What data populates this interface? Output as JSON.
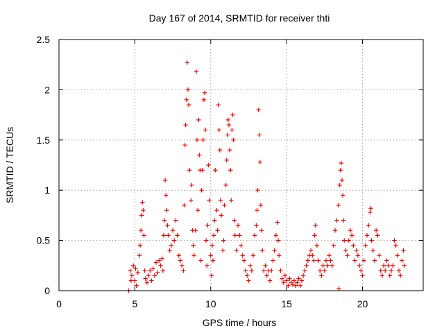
{
  "chart_data": {
    "type": "scatter",
    "title": "Day 167 of 2014, SRMTID for receiver thti",
    "xlabel": "GPS time / hours",
    "ylabel": "SRMTID / TECUs",
    "xlim": [
      0,
      24
    ],
    "ylim": [
      0,
      2.5
    ],
    "xticks": [
      {
        "value": 0,
        "label": "0"
      },
      {
        "value": 5,
        "label": "5"
      },
      {
        "value": 10,
        "label": "10"
      },
      {
        "value": 15,
        "label": "15"
      },
      {
        "value": 20,
        "label": "20"
      }
    ],
    "yticks": [
      {
        "value": 0,
        "label": "0"
      },
      {
        "value": 0.5,
        "label": "0.5"
      },
      {
        "value": 1,
        "label": "1"
      },
      {
        "value": 1.5,
        "label": "1.5"
      },
      {
        "value": 2,
        "label": "2"
      },
      {
        "value": 2.5,
        "label": "2.5"
      }
    ],
    "grid": true,
    "marker": "+",
    "series": [
      {
        "name": "SRMTID",
        "color": "#ff0000",
        "points": [
          [
            4.6,
            0.0
          ],
          [
            4.7,
            0.2
          ],
          [
            4.75,
            0.1
          ],
          [
            4.8,
            0.15
          ],
          [
            4.9,
            0.25
          ],
          [
            5.0,
            0.1
          ],
          [
            5.05,
            0.22
          ],
          [
            5.1,
            0.05
          ],
          [
            5.2,
            0.18
          ],
          [
            5.3,
            0.35
          ],
          [
            5.35,
            0.45
          ],
          [
            5.4,
            0.6
          ],
          [
            5.45,
            0.75
          ],
          [
            5.5,
            0.88
          ],
          [
            5.55,
            0.8
          ],
          [
            5.6,
            0.55
          ],
          [
            5.65,
            0.2
          ],
          [
            5.7,
            0.12
          ],
          [
            5.8,
            0.08
          ],
          [
            5.9,
            0.15
          ],
          [
            6.0,
            0.2
          ],
          [
            6.1,
            0.1
          ],
          [
            6.2,
            0.22
          ],
          [
            6.3,
            0.15
          ],
          [
            6.4,
            0.28
          ],
          [
            6.5,
            0.18
          ],
          [
            6.6,
            0.3
          ],
          [
            6.7,
            0.25
          ],
          [
            6.8,
            0.32
          ],
          [
            6.85,
            0.2
          ],
          [
            6.9,
            0.55
          ],
          [
            6.95,
            0.7
          ],
          [
            7.0,
            1.1
          ],
          [
            7.05,
            0.95
          ],
          [
            7.1,
            0.8
          ],
          [
            7.15,
            0.65
          ],
          [
            7.2,
            0.55
          ],
          [
            7.3,
            0.4
          ],
          [
            7.4,
            0.45
          ],
          [
            7.5,
            0.6
          ],
          [
            7.6,
            0.5
          ],
          [
            7.7,
            0.7
          ],
          [
            7.8,
            0.55
          ],
          [
            7.9,
            0.35
          ],
          [
            8.0,
            0.3
          ],
          [
            8.1,
            0.25
          ],
          [
            8.2,
            0.2
          ],
          [
            8.25,
            0.85
          ],
          [
            8.3,
            1.45
          ],
          [
            8.35,
            1.65
          ],
          [
            8.4,
            1.9
          ],
          [
            8.45,
            2.27
          ],
          [
            8.5,
            2.0
          ],
          [
            8.55,
            1.85
          ],
          [
            8.6,
            1.2
          ],
          [
            8.7,
            0.9
          ],
          [
            8.75,
            1.05
          ],
          [
            8.8,
            0.6
          ],
          [
            8.85,
            0.45
          ],
          [
            8.9,
            0.35
          ],
          [
            9.0,
            0.6
          ],
          [
            9.05,
            2.18
          ],
          [
            9.1,
            1.5
          ],
          [
            9.15,
            0.8
          ],
          [
            9.2,
            1.7
          ],
          [
            9.25,
            1.35
          ],
          [
            9.3,
            1.2
          ],
          [
            9.35,
            0.3
          ],
          [
            9.4,
            1.0
          ],
          [
            9.45,
            1.2
          ],
          [
            9.5,
            1.5
          ],
          [
            9.55,
            1.9
          ],
          [
            9.6,
            1.97
          ],
          [
            9.65,
            1.6
          ],
          [
            9.7,
            0.5
          ],
          [
            9.75,
            0.25
          ],
          [
            9.8,
            0.65
          ],
          [
            9.85,
            1.25
          ],
          [
            9.9,
            0.9
          ],
          [
            10.0,
            0.35
          ],
          [
            10.05,
            0.15
          ],
          [
            10.1,
            0.45
          ],
          [
            10.15,
            0.3
          ],
          [
            10.2,
            0.55
          ],
          [
            10.25,
            0.7
          ],
          [
            10.3,
            1.2
          ],
          [
            10.4,
            0.8
          ],
          [
            10.45,
            0.6
          ],
          [
            10.5,
            1.85
          ],
          [
            10.55,
            1.6
          ],
          [
            10.6,
            1.4
          ],
          [
            10.65,
            0.9
          ],
          [
            10.7,
            0.75
          ],
          [
            10.8,
            0.4
          ],
          [
            10.85,
            0.5
          ],
          [
            10.9,
            0.85
          ],
          [
            11.0,
            1.05
          ],
          [
            11.05,
            1.3
          ],
          [
            11.1,
            1.55
          ],
          [
            11.15,
            1.7
          ],
          [
            11.2,
            1.65
          ],
          [
            11.25,
            1.4
          ],
          [
            11.3,
            1.2
          ],
          [
            11.35,
            0.9
          ],
          [
            11.4,
            1.6
          ],
          [
            11.45,
            1.75
          ],
          [
            11.5,
            1.5
          ],
          [
            11.55,
            0.7
          ],
          [
            11.6,
            0.55
          ],
          [
            11.7,
            0.4
          ],
          [
            11.8,
            0.65
          ],
          [
            11.9,
            0.55
          ],
          [
            12.0,
            0.45
          ],
          [
            12.1,
            0.35
          ],
          [
            12.2,
            0.3
          ],
          [
            12.3,
            0.2
          ],
          [
            12.4,
            0.15
          ],
          [
            12.5,
            0.1
          ],
          [
            12.6,
            0.25
          ],
          [
            12.7,
            0.2
          ],
          [
            12.8,
            0.35
          ],
          [
            12.9,
            0.55
          ],
          [
            13.0,
            0.65
          ],
          [
            13.05,
            0.8
          ],
          [
            13.1,
            1.0
          ],
          [
            13.15,
            1.8
          ],
          [
            13.2,
            1.55
          ],
          [
            13.25,
            1.28
          ],
          [
            13.3,
            0.85
          ],
          [
            13.35,
            0.6
          ],
          [
            13.4,
            0.4
          ],
          [
            13.5,
            0.2
          ],
          [
            13.6,
            0.25
          ],
          [
            13.7,
            0.15
          ],
          [
            13.8,
            0.2
          ],
          [
            13.9,
            0.1
          ],
          [
            14.0,
            0.2
          ],
          [
            14.1,
            0.3
          ],
          [
            14.2,
            0.4
          ],
          [
            14.3,
            0.55
          ],
          [
            14.4,
            0.68
          ],
          [
            14.45,
            0.5
          ],
          [
            14.5,
            0.35
          ],
          [
            14.6,
            0.2
          ],
          [
            14.7,
            0.12
          ],
          [
            14.8,
            0.08
          ],
          [
            14.9,
            0.15
          ],
          [
            15.0,
            0.1
          ],
          [
            15.1,
            0.05
          ],
          [
            15.2,
            0.12
          ],
          [
            15.3,
            0.08
          ],
          [
            15.4,
            0.06
          ],
          [
            15.5,
            0.1
          ],
          [
            15.6,
            0.05
          ],
          [
            15.7,
            0.08
          ],
          [
            15.8,
            0.12
          ],
          [
            15.9,
            0.05
          ],
          [
            16.0,
            0.1
          ],
          [
            16.1,
            0.15
          ],
          [
            16.2,
            0.2
          ],
          [
            16.3,
            0.25
          ],
          [
            16.4,
            0.3
          ],
          [
            16.5,
            0.35
          ],
          [
            16.6,
            0.4
          ],
          [
            16.7,
            0.35
          ],
          [
            16.8,
            0.3
          ],
          [
            16.85,
            0.55
          ],
          [
            16.9,
            0.65
          ],
          [
            17.0,
            0.45
          ],
          [
            17.1,
            0.3
          ],
          [
            17.2,
            0.2
          ],
          [
            17.3,
            0.15
          ],
          [
            17.4,
            0.25
          ],
          [
            17.5,
            0.2
          ],
          [
            17.6,
            0.3
          ],
          [
            17.7,
            0.25
          ],
          [
            17.8,
            0.35
          ],
          [
            17.9,
            0.3
          ],
          [
            18.0,
            0.25
          ],
          [
            18.1,
            0.45
          ],
          [
            18.2,
            0.6
          ],
          [
            18.3,
            0.7
          ],
          [
            18.4,
            0.85
          ],
          [
            18.45,
            0.02
          ],
          [
            18.5,
            1.05
          ],
          [
            18.55,
            1.2
          ],
          [
            18.6,
            1.27
          ],
          [
            18.65,
            1.1
          ],
          [
            18.7,
            0.95
          ],
          [
            18.75,
            0.7
          ],
          [
            18.8,
            0.5
          ],
          [
            18.9,
            0.4
          ],
          [
            19.0,
            0.35
          ],
          [
            19.1,
            0.5
          ],
          [
            19.2,
            0.6
          ],
          [
            19.3,
            0.55
          ],
          [
            19.4,
            0.45
          ],
          [
            19.5,
            0.3
          ],
          [
            19.6,
            0.4
          ],
          [
            19.7,
            0.35
          ],
          [
            19.8,
            0.25
          ],
          [
            19.9,
            0.2
          ],
          [
            20.0,
            0.15
          ],
          [
            20.1,
            0.3
          ],
          [
            20.2,
            0.45
          ],
          [
            20.3,
            0.55
          ],
          [
            20.4,
            0.65
          ],
          [
            20.5,
            0.78
          ],
          [
            20.55,
            0.82
          ],
          [
            20.6,
            0.5
          ],
          [
            20.7,
            0.4
          ],
          [
            20.8,
            0.3
          ],
          [
            20.9,
            0.6
          ],
          [
            21.0,
            0.55
          ],
          [
            21.1,
            0.35
          ],
          [
            21.2,
            0.2
          ],
          [
            21.3,
            0.15
          ],
          [
            21.4,
            0.25
          ],
          [
            21.5,
            0.2
          ],
          [
            21.6,
            0.3
          ],
          [
            21.7,
            0.25
          ],
          [
            21.8,
            0.15
          ],
          [
            21.9,
            0.2
          ],
          [
            22.0,
            0.25
          ],
          [
            22.1,
            0.5
          ],
          [
            22.2,
            0.45
          ],
          [
            22.3,
            0.35
          ],
          [
            22.4,
            0.2
          ],
          [
            22.5,
            0.15
          ],
          [
            22.6,
            0.3
          ],
          [
            22.7,
            0.4
          ],
          [
            22.75,
            0.25
          ]
        ]
      }
    ]
  }
}
